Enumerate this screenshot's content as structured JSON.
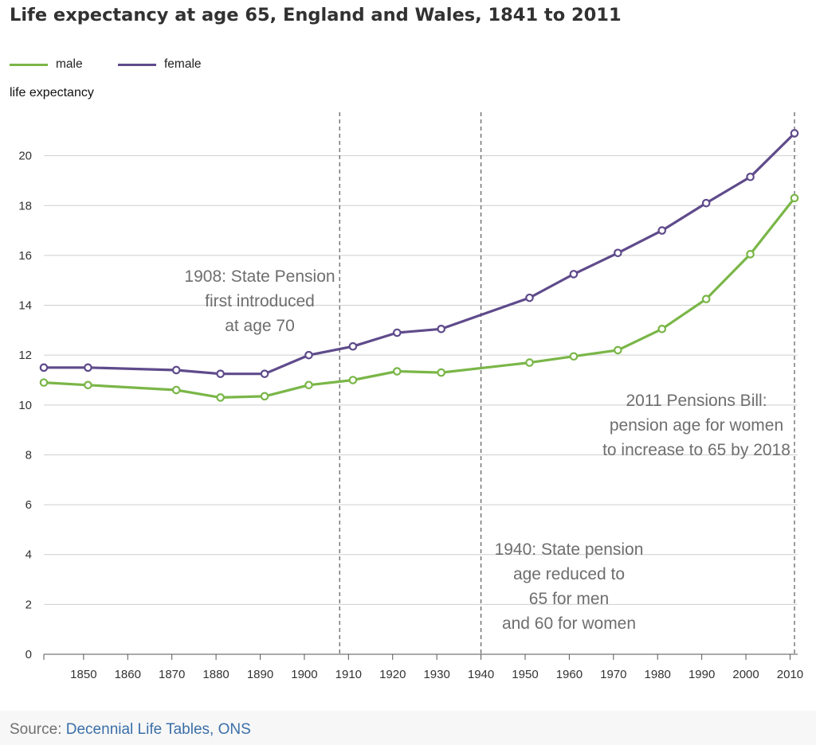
{
  "chart_data": {
    "type": "line",
    "title": "Life expectancy at age 65, England and Wales, 1841 to 2011",
    "ylabel": "life expectancy",
    "xlabel": "",
    "xlim": [
      1841,
      2011
    ],
    "ylim": [
      0,
      22
    ],
    "y_ticks": [
      0,
      2,
      4,
      6,
      8,
      10,
      12,
      14,
      16,
      18,
      20
    ],
    "x_ticks": [
      1850,
      1860,
      1870,
      1880,
      1890,
      1900,
      1910,
      1920,
      1930,
      1940,
      1950,
      1960,
      1970,
      1980,
      1990,
      2000,
      2010
    ],
    "grid": "horizontal",
    "legend_position": "top-left",
    "x": [
      1841,
      1851,
      1871,
      1881,
      1891,
      1901,
      1911,
      1921,
      1931,
      1951,
      1961,
      1971,
      1981,
      1991,
      2001,
      2011
    ],
    "series": [
      {
        "name": "male",
        "color": "#7ab648",
        "values": [
          10.9,
          10.8,
          10.6,
          10.3,
          10.35,
          10.8,
          11.0,
          11.35,
          11.3,
          11.7,
          11.95,
          12.2,
          13.05,
          14.25,
          16.05,
          18.3
        ]
      },
      {
        "name": "female",
        "color": "#5f4b8b",
        "values": [
          11.5,
          11.5,
          11.4,
          11.25,
          11.25,
          12.0,
          12.35,
          12.9,
          13.05,
          14.3,
          15.25,
          16.1,
          17.0,
          18.1,
          19.15,
          20.9
        ]
      }
    ],
    "reference_lines": [
      1908,
      1940,
      2011
    ],
    "annotations": [
      {
        "year": 1908,
        "lines": [
          "1908: State Pension",
          "first introduced",
          "at age 70"
        ]
      },
      {
        "year": 1940,
        "lines": [
          "1940: State pension",
          "age reduced to",
          "65 for men",
          "and 60 for women"
        ]
      },
      {
        "year": 2011,
        "lines": [
          "2011 Pensions Bill:",
          "pension age for women",
          "to increase to 65 by 2018"
        ]
      }
    ]
  },
  "source": {
    "prefix": "Source: ",
    "link_text": "Decennial Life Tables, ONS"
  }
}
